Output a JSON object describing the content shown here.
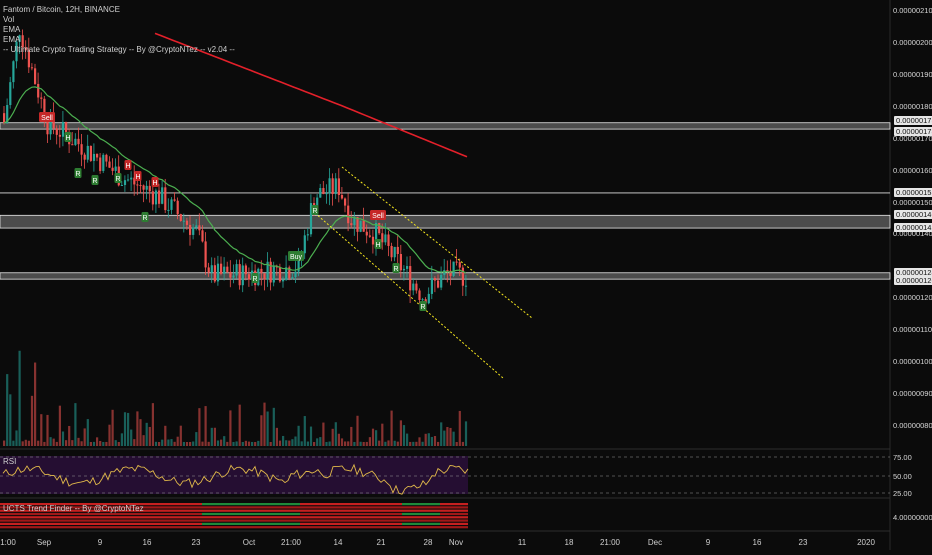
{
  "legend": {
    "symbol_line": "Fantom / Bitcoin, 12H, BINANCE",
    "indicators": [
      "Vol",
      "EMA",
      "EMA",
      "-- Ultimate Crypto Trading Strategy -- By @CryptoNTez -- v2.04 --"
    ]
  },
  "rsi_pane": {
    "label": "RSI",
    "levels": [
      "75.00",
      "50.00",
      "25.00"
    ]
  },
  "trend_pane": {
    "label": "UCTS Trend Finder -- By @CryptoNTez",
    "value": "4.00000000"
  },
  "price_axis": {
    "labels": [
      "0.00000210",
      "0.00000200",
      "0.00000190",
      "0.00000180",
      "0.00000170",
      "0.00000160",
      "0.00000150",
      "0.00000140",
      "0.00000120",
      "0.00000110",
      "0.00000100",
      "0.00000090",
      "0.00000080"
    ],
    "highlighted": [
      "0.00000175",
      "0.00000173",
      "0.00000153",
      "0.00000146",
      "0.00000142",
      "0.00000128",
      "0.00000126"
    ]
  },
  "time_axis": {
    "labels": [
      "1:00",
      "Sep",
      "9",
      "16",
      "23",
      "Oct",
      "21:00",
      "14",
      "21",
      "28",
      "Nov",
      "11",
      "18",
      "21:00",
      "Dec",
      "9",
      "16",
      "23",
      "2020"
    ]
  },
  "signals": [
    "Sell",
    "Sell",
    "Buy",
    "R",
    "R",
    "R",
    "R",
    "R",
    "R",
    "R",
    "R",
    "H",
    "H",
    "H",
    "H",
    "H"
  ],
  "colors": {
    "background": "#0b0b0b",
    "up": "#26a69a",
    "down": "#ef5350",
    "ema_slow": "#e3202a",
    "ema_fast": "#4caf50",
    "channel": "#f5e61e",
    "rsi_line": "#e0b84a",
    "rsi_bg": "#2a0f3a"
  }
}
